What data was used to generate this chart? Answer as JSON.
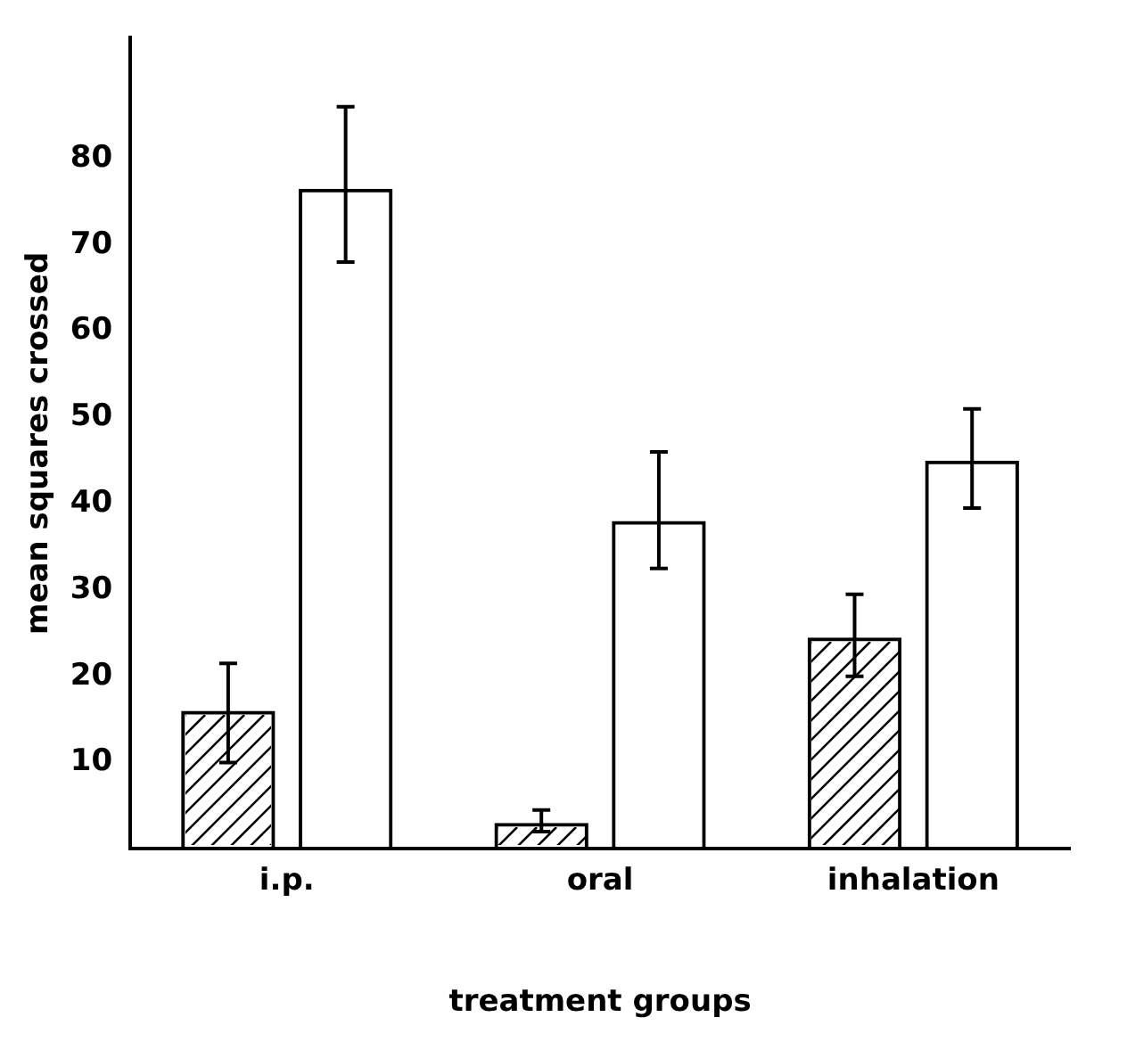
{
  "chart_data": {
    "type": "bar",
    "xlabel": "treatment groups",
    "ylabel": "mean squares crossed",
    "categories": [
      "i.p.",
      "oral",
      "inhalation"
    ],
    "series": [
      {
        "color": "#000000",
        "values": [
          16,
          3,
          24.5
        ],
        "errors": [
          [
            10,
            21.5
          ],
          [
            2,
            4.5
          ],
          [
            20,
            29.5
          ]
        ]
      },
      {
        "color": "#000000",
        "values": [
          76.5,
          38,
          45
        ],
        "errors": [
          [
            68,
            86
          ],
          [
            32.5,
            46
          ],
          [
            39.5,
            51
          ]
        ]
      }
    ],
    "ylim": [
      0,
      94
    ],
    "yticks": [
      10,
      20,
      30,
      40,
      50,
      60,
      70,
      80
    ],
    "grid": false,
    "legend": false
  }
}
